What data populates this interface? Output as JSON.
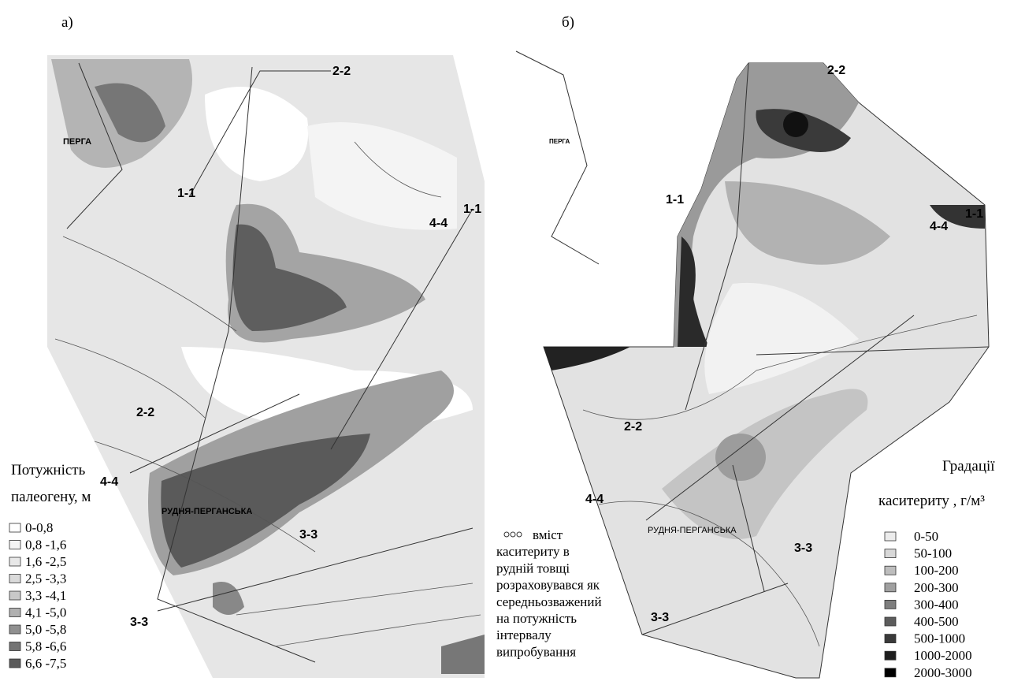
{
  "panel_a": {
    "title": "а)",
    "places": [
      "ПЕРГА",
      "РУДНЯ-ПЕРГАНСЬКА"
    ],
    "sections": [
      "2-2",
      "1-1",
      "1-1",
      "4-4",
      "2-2",
      "4-4",
      "3-3",
      "3-3"
    ],
    "legend": {
      "title": [
        "Потужність",
        "палеогену, м"
      ],
      "items": [
        {
          "label": "0-0,8",
          "color": "#ffffff"
        },
        {
          "label": "0,8 -1,6",
          "color": "#f4f4f4"
        },
        {
          "label": "1,6 -2,5",
          "color": "#e8e8e8"
        },
        {
          "label": "2,5 -3,3",
          "color": "#dadada"
        },
        {
          "label": "3,3 -4,1",
          "color": "#c8c8c8"
        },
        {
          "label": "4,1 -5,0",
          "color": "#b0b0b0"
        },
        {
          "label": "5,0 -5,8",
          "color": "#909090"
        },
        {
          "label": "5,8 -6,6",
          "color": "#747474"
        },
        {
          "label": "6,6 -7,5",
          "color": "#5a5a5a"
        }
      ]
    }
  },
  "panel_b": {
    "title": "б)",
    "places": [
      "ПЕРГА",
      "РУДНЯ-ПЕРГАНСЬКА"
    ],
    "sections": [
      "2-2",
      "1-1",
      "1-1",
      "4-4",
      "2-2",
      "4-4",
      "3-3",
      "3-3"
    ],
    "note": [
      "вміст",
      "каситериту в",
      "рудній товщі",
      "розраховувався як",
      "середньозважений",
      "на потужність",
      "інтервалу",
      "випробування"
    ],
    "legend": {
      "title": [
        "Градації",
        "каситериту , г/м³"
      ],
      "items": [
        {
          "label": "0-50",
          "color": "#ececec"
        },
        {
          "label": "50-100",
          "color": "#d8d8d8"
        },
        {
          "label": "100-200",
          "color": "#bdbdbd"
        },
        {
          "label": "200-300",
          "color": "#a0a0a0"
        },
        {
          "label": "300-400",
          "color": "#7e7e7e"
        },
        {
          "label": "400-500",
          "color": "#5c5c5c"
        },
        {
          "label": "500-1000",
          "color": "#3a3a3a"
        },
        {
          "label": "1000-2000",
          "color": "#1e1e1e"
        },
        {
          "label": "2000-3000",
          "color": "#000000"
        }
      ]
    }
  }
}
